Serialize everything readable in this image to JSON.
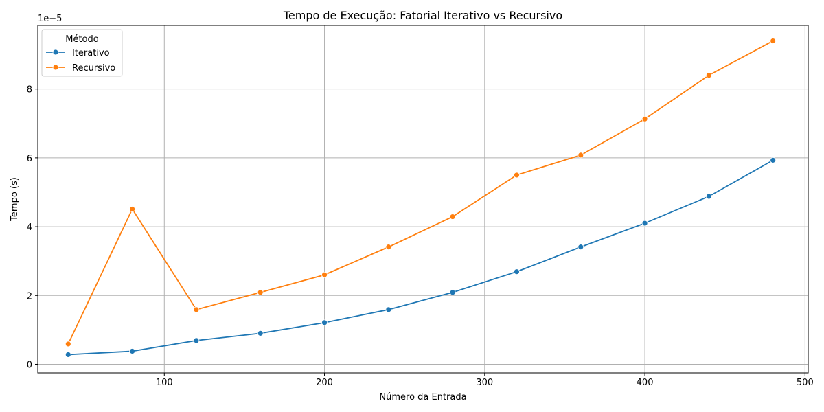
{
  "chart_data": {
    "type": "line",
    "title": "Tempo de Execução: Fatorial Iterativo vs Recursivo",
    "xlabel": "Número da Entrada",
    "ylabel": "Tempo (s)",
    "y_multiplier_label": "1e−5",
    "x": [
      40,
      80,
      120,
      160,
      200,
      240,
      280,
      320,
      360,
      400,
      440,
      480
    ],
    "x_ticks": [
      100,
      200,
      300,
      400,
      500
    ],
    "y_ticks": [
      0,
      2,
      4,
      6,
      8
    ],
    "xlim": [
      21,
      502
    ],
    "ylim": [
      -0.25,
      9.85
    ],
    "y_scale_factor": "1e-5",
    "grid": true,
    "legend": {
      "title": "Método",
      "position": "top-left"
    },
    "series": [
      {
        "name": "Iterativo",
        "color": "#1f77b4",
        "values": [
          0.28,
          0.38,
          0.69,
          0.9,
          1.21,
          1.59,
          2.09,
          2.69,
          3.41,
          4.1,
          4.88,
          5.93
        ]
      },
      {
        "name": "Recursivo",
        "color": "#ff7f0e",
        "values": [
          0.59,
          4.51,
          1.59,
          2.09,
          2.6,
          3.41,
          4.29,
          5.5,
          6.08,
          7.13,
          8.4,
          9.4
        ]
      }
    ]
  }
}
